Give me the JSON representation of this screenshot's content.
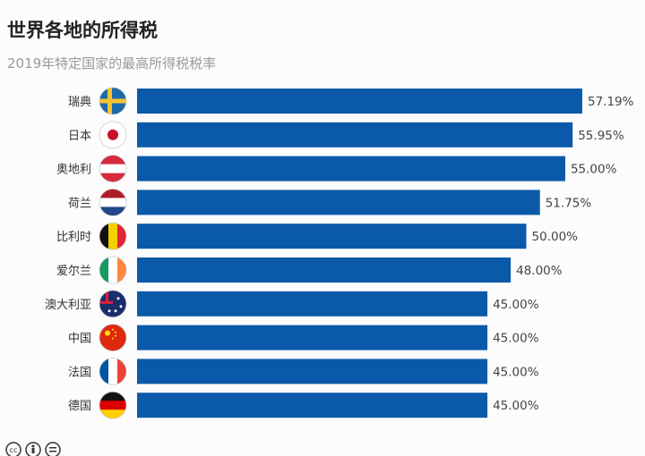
{
  "chart_data": {
    "type": "bar",
    "orientation": "horizontal",
    "title": "世界各地的所得税",
    "subtitle": "2019年特定国家的最高所得税税率",
    "categories": [
      "瑞典",
      "日本",
      "奥地利",
      "荷兰",
      "比利时",
      "爱尔兰",
      "澳大利亚",
      "中国",
      "法国",
      "德国"
    ],
    "values": [
      57.19,
      55.95,
      55.0,
      51.75,
      50.0,
      48.0,
      45.0,
      45.0,
      45.0,
      45.0
    ],
    "data_labels": [
      "57.19%",
      "55.95%",
      "55.00%",
      "51.75%",
      "50.00%",
      "48.00%",
      "45.00%",
      "45.00%",
      "45.00%",
      "45.00%"
    ],
    "flags": [
      "sweden",
      "japan",
      "austria",
      "netherlands",
      "belgium",
      "ireland",
      "australia",
      "china",
      "france",
      "germany"
    ],
    "bar_color": "#0b5aa9",
    "xlim": [
      0,
      57.19
    ],
    "grid": false,
    "legend": "none"
  },
  "footer": {
    "license_icons": [
      "cc-icon",
      "by-icon",
      "nd-icon"
    ]
  }
}
